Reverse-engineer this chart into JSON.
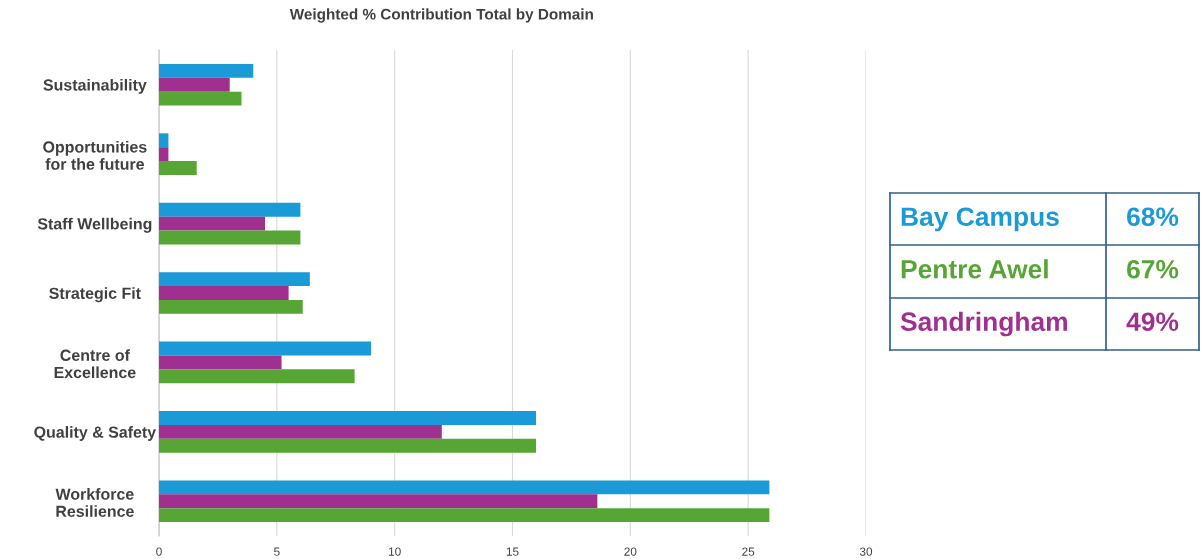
{
  "chart_data": {
    "type": "bar",
    "orientation": "horizontal",
    "title": "Weighted % Contribution Total by Domain",
    "categories": [
      "Sustainability",
      "Opportunities\nfor the future",
      "Staff Wellbeing",
      "Strategic Fit",
      "Centre of\nExcellence",
      "Quality & Safety",
      "Workforce\nResilience"
    ],
    "series": [
      {
        "name": "Bay Campus",
        "color": "#1a9ad6",
        "values": [
          4.0,
          0.4,
          6.0,
          6.4,
          9.0,
          16.0,
          25.9
        ]
      },
      {
        "name": "Sandringham",
        "color": "#a0308f",
        "values": [
          3.0,
          0.4,
          4.5,
          5.5,
          5.2,
          12.0,
          18.6
        ]
      },
      {
        "name": "Pentre Awel",
        "color": "#56a535",
        "values": [
          3.5,
          1.6,
          6.0,
          6.1,
          8.3,
          16.0,
          25.9
        ]
      }
    ],
    "xlim": [
      0,
      30
    ],
    "xticks": [
      0,
      5,
      10,
      15,
      20,
      25,
      30
    ],
    "grid": "x",
    "legend": "right",
    "annotations": [
      "68%",
      "49%",
      "67%"
    ]
  }
}
